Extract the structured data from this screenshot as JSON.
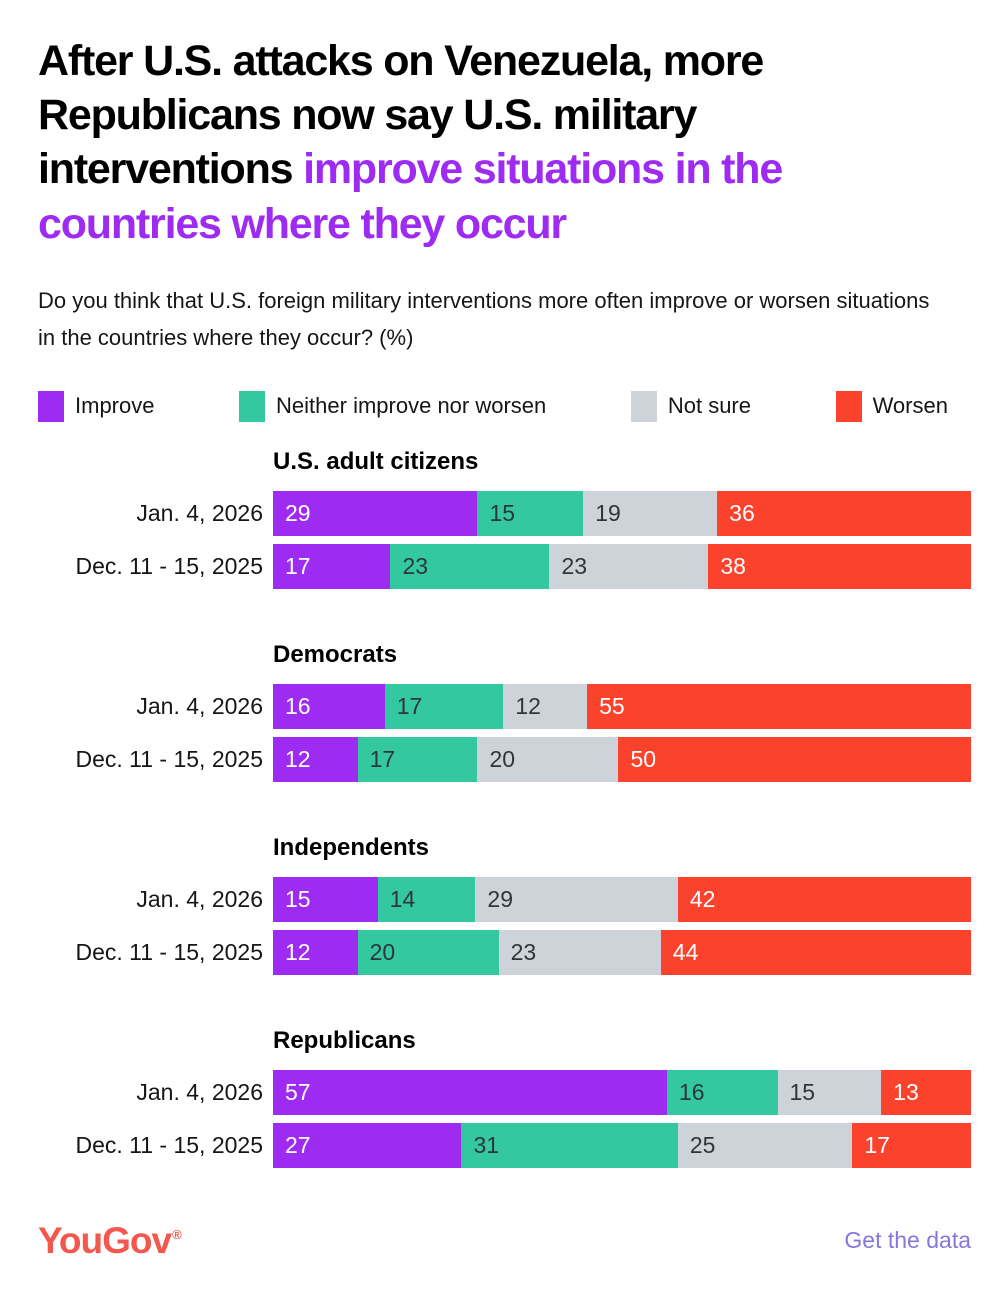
{
  "title": {
    "segments": [
      {
        "text": "After U.S. attacks on Venezuela, more Republicans now say U.S. military interventions ",
        "color": "#000000"
      },
      {
        "text": "improve situations in the countries where they occur",
        "color": "#9D2BF2"
      }
    ]
  },
  "subtitle": "Do you think that U.S. foreign military interventions more often improve or worsen situations in the countries where they occur? (%)",
  "legend": [
    {
      "label": "Improve",
      "color": "#9D2BF2",
      "value_text_color": "#ffffff"
    },
    {
      "label": "Neither improve nor worsen",
      "color": "#34C8A0",
      "value_text_color": "#2e363c"
    },
    {
      "label": "Not sure",
      "color": "#CDD3D9",
      "value_text_color": "#2e363c"
    },
    {
      "label": "Worsen",
      "color": "#FB422C",
      "value_text_color": "#ffffff"
    }
  ],
  "chart_data": {
    "type": "bar",
    "stacked": true,
    "orientation": "horizontal",
    "unit": "%",
    "xlim": [
      0,
      100
    ],
    "grid": false,
    "legend_position": "top",
    "series_labels": [
      "Improve",
      "Neither improve nor worsen",
      "Not sure",
      "Worsen"
    ],
    "colors": {
      "Improve": "#9D2BF2",
      "Neither improve nor worsen": "#34C8A0",
      "Not sure": "#CDD3D9",
      "Worsen": "#FB422C"
    },
    "groups": [
      {
        "name": "U.S. adult citizens",
        "rows": [
          {
            "date": "Jan. 4, 2026",
            "values": [
              29,
              15,
              19,
              36
            ]
          },
          {
            "date": "Dec. 11 - 15, 2025",
            "values": [
              17,
              23,
              23,
              38
            ]
          }
        ]
      },
      {
        "name": "Democrats",
        "rows": [
          {
            "date": "Jan. 4, 2026",
            "values": [
              16,
              17,
              12,
              55
            ]
          },
          {
            "date": "Dec. 11 - 15, 2025",
            "values": [
              12,
              17,
              20,
              50
            ]
          }
        ]
      },
      {
        "name": "Independents",
        "rows": [
          {
            "date": "Jan. 4, 2026",
            "values": [
              15,
              14,
              29,
              42
            ]
          },
          {
            "date": "Dec. 11 - 15, 2025",
            "values": [
              12,
              20,
              23,
              44
            ]
          }
        ]
      },
      {
        "name": "Republicans",
        "rows": [
          {
            "date": "Jan. 4, 2026",
            "values": [
              57,
              16,
              15,
              13
            ]
          },
          {
            "date": "Dec. 11 - 15, 2025",
            "values": [
              27,
              31,
              25,
              17
            ]
          }
        ]
      }
    ]
  },
  "footer": {
    "brand": "YouGov",
    "registered": "®",
    "link": "Get the data"
  }
}
